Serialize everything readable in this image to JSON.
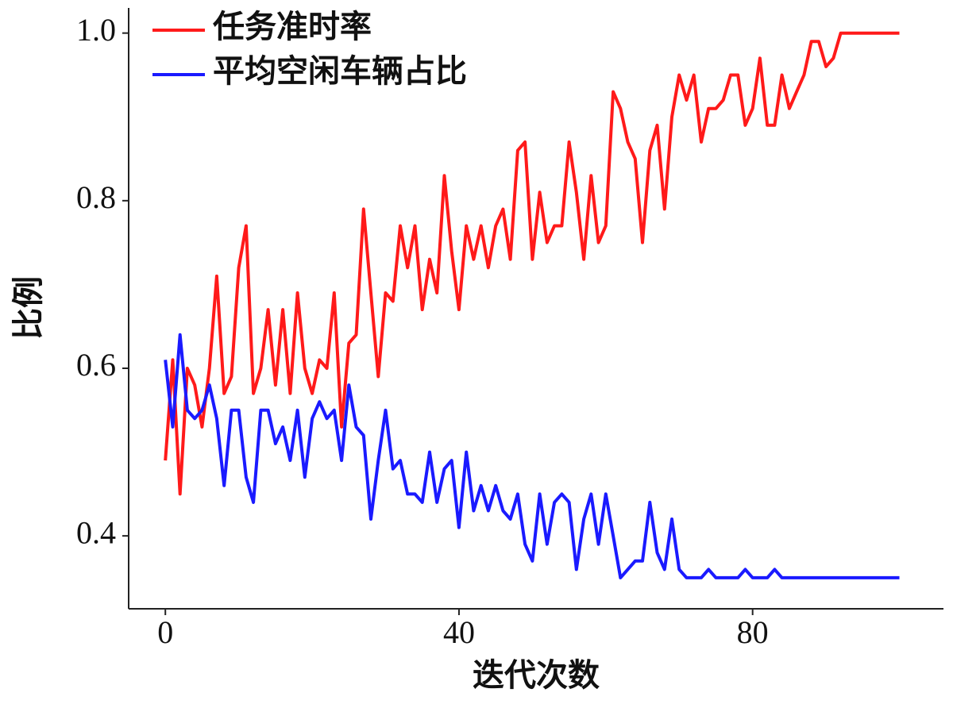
{
  "chart_data": {
    "type": "line",
    "x_label": "迭代次数",
    "y_label": "比例",
    "x": [
      0,
      1,
      2,
      3,
      4,
      5,
      6,
      7,
      8,
      9,
      10,
      11,
      12,
      13,
      14,
      15,
      16,
      17,
      18,
      19,
      20,
      21,
      22,
      23,
      24,
      25,
      26,
      27,
      28,
      29,
      30,
      31,
      32,
      33,
      34,
      35,
      36,
      37,
      38,
      39,
      40,
      41,
      42,
      43,
      44,
      45,
      46,
      47,
      48,
      49,
      50,
      51,
      52,
      53,
      54,
      55,
      56,
      57,
      58,
      59,
      60,
      61,
      62,
      63,
      64,
      65,
      66,
      67,
      68,
      69,
      70,
      71,
      72,
      73,
      74,
      75,
      76,
      77,
      78,
      79,
      80,
      81,
      82,
      83,
      84,
      85,
      86,
      87,
      88,
      89,
      90,
      91,
      92,
      93,
      94,
      95,
      96,
      97,
      98,
      99,
      100
    ],
    "series": [
      {
        "name": "任务准时率",
        "color": "#ff1a1a",
        "values": [
          0.49,
          0.61,
          0.45,
          0.6,
          0.58,
          0.53,
          0.6,
          0.71,
          0.57,
          0.59,
          0.72,
          0.77,
          0.57,
          0.6,
          0.67,
          0.58,
          0.67,
          0.57,
          0.69,
          0.6,
          0.57,
          0.61,
          0.6,
          0.69,
          0.53,
          0.63,
          0.64,
          0.79,
          0.69,
          0.59,
          0.69,
          0.68,
          0.77,
          0.72,
          0.77,
          0.67,
          0.73,
          0.69,
          0.83,
          0.74,
          0.67,
          0.77,
          0.73,
          0.77,
          0.72,
          0.77,
          0.79,
          0.73,
          0.86,
          0.87,
          0.73,
          0.81,
          0.75,
          0.77,
          0.77,
          0.87,
          0.81,
          0.73,
          0.83,
          0.75,
          0.77,
          0.93,
          0.91,
          0.87,
          0.85,
          0.75,
          0.86,
          0.89,
          0.79,
          0.9,
          0.95,
          0.92,
          0.95,
          0.87,
          0.91,
          0.91,
          0.92,
          0.95,
          0.95,
          0.89,
          0.91,
          0.97,
          0.89,
          0.89,
          0.95,
          0.91,
          0.93,
          0.95,
          0.99,
          0.99,
          0.96,
          0.97,
          1,
          1,
          1,
          1,
          1,
          1,
          1,
          1,
          1
        ]
      },
      {
        "name": "平均空闲车辆占比",
        "color": "#1a1aff",
        "values": [
          0.61,
          0.53,
          0.64,
          0.55,
          0.54,
          0.55,
          0.58,
          0.54,
          0.46,
          0.55,
          0.55,
          0.47,
          0.44,
          0.55,
          0.55,
          0.51,
          0.53,
          0.49,
          0.55,
          0.47,
          0.54,
          0.56,
          0.54,
          0.55,
          0.49,
          0.58,
          0.53,
          0.52,
          0.42,
          0.49,
          0.55,
          0.48,
          0.49,
          0.45,
          0.45,
          0.44,
          0.5,
          0.44,
          0.48,
          0.49,
          0.41,
          0.5,
          0.43,
          0.46,
          0.43,
          0.46,
          0.43,
          0.42,
          0.45,
          0.39,
          0.37,
          0.45,
          0.39,
          0.44,
          0.45,
          0.44,
          0.36,
          0.42,
          0.45,
          0.39,
          0.45,
          0.4,
          0.35,
          0.36,
          0.37,
          0.37,
          0.44,
          0.38,
          0.36,
          0.42,
          0.36,
          0.35,
          0.35,
          0.35,
          0.36,
          0.35,
          0.35,
          0.35,
          0.35,
          0.36,
          0.35,
          0.35,
          0.35,
          0.36,
          0.35,
          0.35,
          0.35,
          0.35,
          0.35,
          0.35,
          0.35,
          0.35,
          0.35,
          0.35,
          0.35,
          0.35,
          0.35,
          0.35,
          0.35,
          0.35,
          0.35
        ]
      }
    ],
    "xlim": [
      -5,
      106
    ],
    "ylim": [
      0.313,
      1.03
    ],
    "xticks": [
      0,
      40,
      80
    ],
    "yticks": [
      0.4,
      0.6,
      0.8,
      {
        "value": 1,
        "label": "1.0"
      }
    ],
    "legend": "upper left"
  }
}
